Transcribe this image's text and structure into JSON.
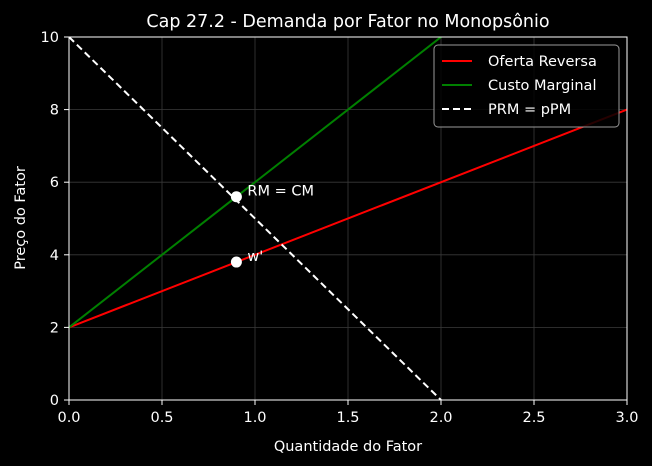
{
  "chart_data": {
    "type": "line",
    "title": "Cap 27.2 - Demanda por Fator no Monopsônio",
    "xlabel": "Quantidade do Fator",
    "ylabel": "Preço do Fator",
    "xlim": [
      0,
      3
    ],
    "ylim": [
      0,
      10
    ],
    "xticks": [
      0,
      0.5,
      1,
      1.5,
      2,
      2.5,
      3
    ],
    "xtick_labels": [
      "0.0",
      "0.5",
      "1.0",
      "1.5",
      "2.0",
      "2.5",
      "3.0"
    ],
    "yticks": [
      0,
      2,
      4,
      6,
      8,
      10
    ],
    "ytick_labels": [
      "0",
      "2",
      "4",
      "6",
      "8",
      "10"
    ],
    "grid": true,
    "legend_position": "top-right",
    "background": "#000000",
    "series": [
      {
        "name": "Oferta Reversa",
        "color": "#ff0000",
        "style": "solid",
        "x": [
          0,
          3
        ],
        "y": [
          2,
          8
        ]
      },
      {
        "name": "Custo Marginal",
        "color": "#008000",
        "style": "solid",
        "x": [
          0,
          3
        ],
        "y": [
          2,
          14
        ]
      },
      {
        "name": "PRM = pPM",
        "color": "#ffffff",
        "style": "dashed",
        "x": [
          0,
          2
        ],
        "y": [
          10,
          0
        ]
      }
    ],
    "points": [
      {
        "label": "RM = CM",
        "x": 0.9,
        "y": 5.6,
        "color": "#ffffff"
      },
      {
        "label": "w'",
        "x": 0.9,
        "y": 3.8,
        "color": "#ffffff"
      }
    ]
  }
}
